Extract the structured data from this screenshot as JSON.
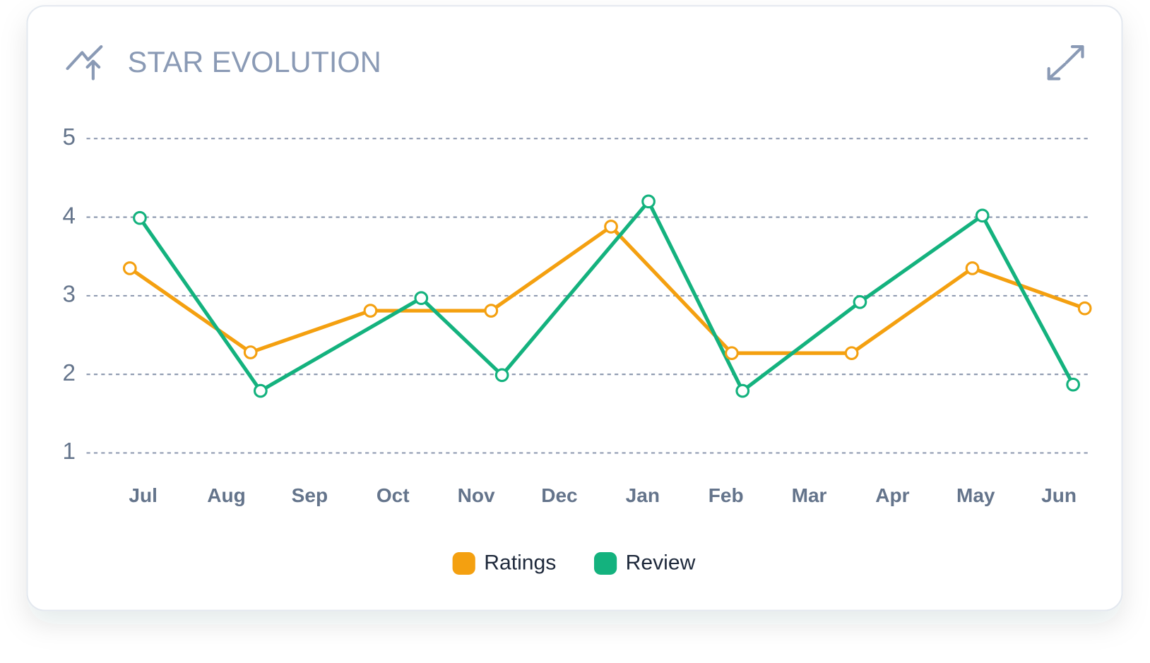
{
  "chart_data": {
    "type": "line",
    "title": "STAR EVOLUTION",
    "xticks": [
      {
        "value": 0,
        "label": "Jul"
      },
      {
        "value": 1,
        "label": "Aug"
      },
      {
        "value": 2,
        "label": "Sep"
      },
      {
        "value": 3,
        "label": "Oct"
      },
      {
        "value": 4,
        "label": "Nov"
      },
      {
        "value": 5,
        "label": "Dec"
      },
      {
        "value": 6,
        "label": "Jan"
      },
      {
        "value": 7,
        "label": "Feb"
      },
      {
        "value": 8,
        "label": "Mar"
      },
      {
        "value": 9,
        "label": "Apr"
      },
      {
        "value": 10,
        "label": "May"
      },
      {
        "value": 11,
        "label": "Jun"
      }
    ],
    "xlim": [
      -0.68,
      11.38
    ],
    "ylim": [
      1,
      5
    ],
    "yticks": [
      1,
      2,
      3,
      4,
      5
    ],
    "grid": true,
    "series": [
      {
        "name": "Ratings",
        "color": "#f4a010",
        "x": [
          -0.16,
          1.29,
          2.73,
          4.18,
          5.62,
          7.07,
          8.51,
          9.96,
          11.31
        ],
        "values": [
          3.35,
          2.28,
          2.81,
          2.81,
          3.88,
          2.27,
          2.27,
          3.35,
          2.84
        ]
      },
      {
        "name": "Review",
        "color": "#14b27e",
        "x": [
          -0.04,
          1.41,
          3.34,
          4.31,
          6.07,
          7.2,
          8.61,
          10.08,
          11.17
        ],
        "values": [
          3.99,
          1.79,
          2.97,
          1.99,
          4.2,
          1.79,
          2.92,
          4.02,
          1.87
        ]
      }
    ]
  }
}
